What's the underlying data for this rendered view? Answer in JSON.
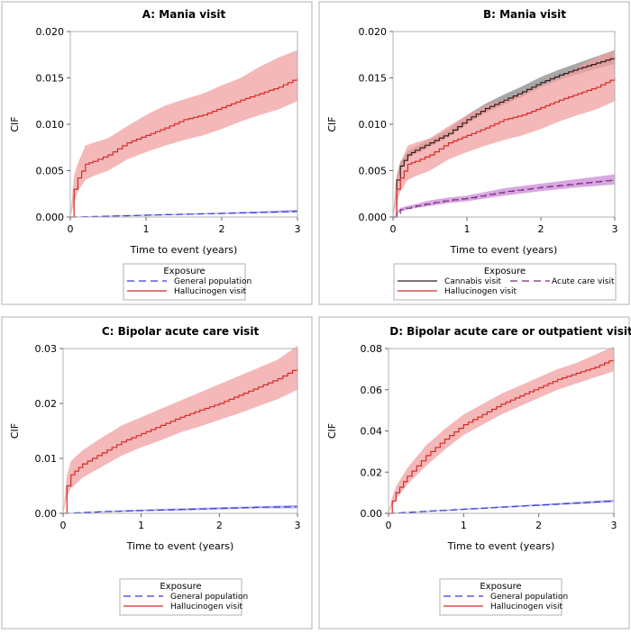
{
  "chart_data": [
    {
      "type": "line",
      "title": "A: Mania visit",
      "xlabel": "Time to event (years)",
      "ylabel": "CIF",
      "xlim": [
        0,
        3
      ],
      "ylim": [
        0,
        0.02
      ],
      "xticks": [
        "0",
        "1",
        "2",
        "3"
      ],
      "yticks": [
        "0.000",
        "0.005",
        "0.010",
        "0.015",
        "0.020"
      ],
      "grid": false,
      "legend": {
        "title": "Exposure",
        "placement": "bottom"
      },
      "series": [
        {
          "name": "General population",
          "color": "#3b3bd6",
          "band": "#9b9bef",
          "dash": true,
          "x": [
            0,
            0.5,
            1,
            1.5,
            2,
            2.5,
            3
          ],
          "y": [
            0,
            0.0001,
            0.0002,
            0.0003,
            0.0004,
            0.0005,
            0.0006
          ],
          "lower": [
            0,
            7e-05,
            0.00015,
            0.00024,
            0.00033,
            0.00042,
            0.0005
          ],
          "upper": [
            0,
            0.00014,
            0.00026,
            0.00037,
            0.00048,
            0.0006,
            0.0008
          ]
        },
        {
          "name": "Hallucinogen visit",
          "color": "#d42a2a",
          "band": "#f0a0a0",
          "dash": false,
          "x": [
            0,
            0.05,
            0.1,
            0.2,
            0.3,
            0.5,
            0.75,
            1,
            1.25,
            1.5,
            1.75,
            2,
            2.25,
            2.5,
            2.75,
            3
          ],
          "y": [
            0,
            0.003,
            0.0042,
            0.0057,
            0.006,
            0.0067,
            0.008,
            0.0088,
            0.0096,
            0.0105,
            0.011,
            0.0118,
            0.0126,
            0.0133,
            0.014,
            0.015
          ],
          "lower": [
            0,
            0.0015,
            0.0028,
            0.004,
            0.0044,
            0.005,
            0.0062,
            0.007,
            0.0077,
            0.0083,
            0.0088,
            0.0095,
            0.0103,
            0.011,
            0.0116,
            0.0125
          ],
          "upper": [
            0,
            0.0045,
            0.0058,
            0.0077,
            0.008,
            0.0085,
            0.0098,
            0.011,
            0.012,
            0.0127,
            0.0133,
            0.0142,
            0.015,
            0.0162,
            0.0172,
            0.018
          ]
        }
      ]
    },
    {
      "type": "line",
      "title": "B: Mania visit",
      "xlabel": "Time to event (years)",
      "ylabel": "CIF",
      "xlim": [
        0,
        3
      ],
      "ylim": [
        0,
        0.02
      ],
      "xticks": [
        "0",
        "1",
        "2",
        "3"
      ],
      "yticks": [
        "0.000",
        "0.005",
        "0.010",
        "0.015",
        "0.020"
      ],
      "grid": false,
      "legend": {
        "title": "Exposure",
        "placement": "bottom"
      },
      "series": [
        {
          "name": "Cannabis visit",
          "color": "#3a1a1a",
          "band": "#8a8a8a",
          "dash": false,
          "x": [
            0,
            0.05,
            0.1,
            0.2,
            0.3,
            0.5,
            0.75,
            1,
            1.25,
            1.5,
            1.75,
            2,
            2.25,
            2.5,
            2.75,
            3
          ],
          "y": [
            0,
            0.004,
            0.0055,
            0.0067,
            0.0072,
            0.008,
            0.009,
            0.0105,
            0.0117,
            0.0126,
            0.0135,
            0.0145,
            0.0153,
            0.016,
            0.0166,
            0.0172
          ],
          "lower": [
            0,
            0.0035,
            0.005,
            0.0063,
            0.0068,
            0.0076,
            0.0086,
            0.01,
            0.0112,
            0.0121,
            0.013,
            0.014,
            0.0148,
            0.0154,
            0.016,
            0.0165
          ],
          "upper": [
            0,
            0.0045,
            0.006,
            0.0071,
            0.0076,
            0.0084,
            0.0095,
            0.011,
            0.0122,
            0.0132,
            0.0141,
            0.0151,
            0.0159,
            0.0166,
            0.0173,
            0.018
          ]
        },
        {
          "name": "Hallucinogen visit",
          "color": "#d42a2a",
          "band": "#f0a0a0",
          "dash": false,
          "x": [
            0,
            0.05,
            0.1,
            0.2,
            0.3,
            0.5,
            0.75,
            1,
            1.25,
            1.5,
            1.75,
            2,
            2.25,
            2.5,
            2.75,
            3
          ],
          "y": [
            0,
            0.003,
            0.0042,
            0.0057,
            0.006,
            0.0067,
            0.008,
            0.0088,
            0.0096,
            0.0105,
            0.011,
            0.0118,
            0.0126,
            0.0133,
            0.014,
            0.015
          ],
          "lower": [
            0,
            0.0015,
            0.0028,
            0.004,
            0.0044,
            0.005,
            0.0062,
            0.007,
            0.0077,
            0.0083,
            0.0088,
            0.0095,
            0.0103,
            0.011,
            0.0116,
            0.0125
          ],
          "upper": [
            0,
            0.0045,
            0.0058,
            0.0077,
            0.008,
            0.0085,
            0.0098,
            0.011,
            0.012,
            0.0127,
            0.0133,
            0.0142,
            0.015,
            0.0162,
            0.0172,
            0.018
          ]
        },
        {
          "name": "Acute care visit",
          "color": "#7a2a7a",
          "band": "#c98ad6",
          "dash": true,
          "x": [
            0,
            0.1,
            0.25,
            0.5,
            0.75,
            1,
            1.5,
            2,
            2.5,
            3
          ],
          "y": [
            0,
            0.0008,
            0.0011,
            0.0015,
            0.0018,
            0.002,
            0.0027,
            0.0032,
            0.0036,
            0.004
          ],
          "lower": [
            0,
            0.0006,
            0.0009,
            0.0012,
            0.0015,
            0.0017,
            0.0023,
            0.0028,
            0.0032,
            0.0035
          ],
          "upper": [
            0,
            0.001,
            0.0013,
            0.0018,
            0.0021,
            0.0023,
            0.0031,
            0.0036,
            0.0041,
            0.0046
          ]
        }
      ]
    },
    {
      "type": "line",
      "title": "C: Bipolar acute care visit",
      "xlabel": "Time to event (years)",
      "ylabel": "CIF",
      "xlim": [
        0,
        3
      ],
      "ylim": [
        0,
        0.03
      ],
      "xticks": [
        "0",
        "1",
        "2",
        "3"
      ],
      "yticks": [
        "0.00",
        "0.01",
        "0.02",
        "0.03"
      ],
      "grid": false,
      "legend": {
        "title": "Exposure",
        "placement": "bottom"
      },
      "series": [
        {
          "name": "General population",
          "color": "#3b3bd6",
          "band": "#9b9bef",
          "dash": true,
          "x": [
            0,
            0.5,
            1,
            1.5,
            2,
            2.5,
            3
          ],
          "y": [
            0,
            0.0003,
            0.0005,
            0.0007,
            0.0009,
            0.0011,
            0.0012
          ],
          "lower": [
            0,
            0.0002,
            0.0004,
            0.0005,
            0.0007,
            0.0009,
            0.0009
          ],
          "upper": [
            0,
            0.0004,
            0.0007,
            0.0009,
            0.0011,
            0.0013,
            0.0015
          ]
        },
        {
          "name": "Hallucinogen visit",
          "color": "#d42a2a",
          "band": "#f0a0a0",
          "dash": false,
          "x": [
            0,
            0.05,
            0.1,
            0.25,
            0.5,
            0.75,
            1,
            1.25,
            1.5,
            1.75,
            2,
            2.25,
            2.5,
            2.75,
            3
          ],
          "y": [
            0,
            0.005,
            0.007,
            0.009,
            0.011,
            0.013,
            0.0145,
            0.016,
            0.0175,
            0.0188,
            0.02,
            0.0215,
            0.023,
            0.0245,
            0.0265
          ],
          "lower": [
            0,
            0.003,
            0.0045,
            0.0065,
            0.0085,
            0.0105,
            0.012,
            0.0133,
            0.0147,
            0.0158,
            0.017,
            0.0182,
            0.0195,
            0.0208,
            0.0225
          ],
          "upper": [
            0,
            0.007,
            0.0095,
            0.0115,
            0.0138,
            0.016,
            0.0175,
            0.019,
            0.0205,
            0.022,
            0.0235,
            0.025,
            0.0265,
            0.028,
            0.0305
          ]
        }
      ]
    },
    {
      "type": "line",
      "title": "D: Bipolar acute care or outpatient visit",
      "xlabel": "Time to event (years)",
      "ylabel": "CIF",
      "xlim": [
        0,
        3
      ],
      "ylim": [
        0,
        0.08
      ],
      "xticks": [
        "0",
        "1",
        "2",
        "3"
      ],
      "yticks": [
        "0.00",
        "0.02",
        "0.04",
        "0.06",
        "0.08"
      ],
      "grid": false,
      "legend": {
        "title": "Exposure",
        "placement": "bottom"
      },
      "series": [
        {
          "name": "General population",
          "color": "#3b3bd6",
          "band": "#9b9bef",
          "dash": true,
          "x": [
            0,
            0.5,
            1,
            1.5,
            2,
            2.5,
            3
          ],
          "y": [
            0,
            0.001,
            0.002,
            0.003,
            0.004,
            0.005,
            0.006
          ],
          "lower": [
            0,
            0.0008,
            0.0017,
            0.0027,
            0.0036,
            0.0045,
            0.0054
          ],
          "upper": [
            0,
            0.0012,
            0.0023,
            0.0034,
            0.0044,
            0.0055,
            0.0067
          ]
        },
        {
          "name": "Hallucinogen visit",
          "color": "#d42a2a",
          "band": "#f0a0a0",
          "dash": false,
          "x": [
            0,
            0.05,
            0.1,
            0.25,
            0.5,
            0.75,
            1,
            1.25,
            1.5,
            1.75,
            2,
            2.25,
            2.5,
            2.75,
            3
          ],
          "y": [
            0,
            0.006,
            0.01,
            0.018,
            0.028,
            0.036,
            0.043,
            0.048,
            0.053,
            0.057,
            0.061,
            0.065,
            0.068,
            0.071,
            0.075
          ],
          "lower": [
            0,
            0.004,
            0.007,
            0.014,
            0.023,
            0.031,
            0.038,
            0.043,
            0.048,
            0.052,
            0.056,
            0.06,
            0.063,
            0.066,
            0.069
          ],
          "upper": [
            0,
            0.008,
            0.013,
            0.022,
            0.033,
            0.041,
            0.048,
            0.053,
            0.058,
            0.062,
            0.066,
            0.07,
            0.073,
            0.077,
            0.081
          ]
        }
      ]
    }
  ]
}
